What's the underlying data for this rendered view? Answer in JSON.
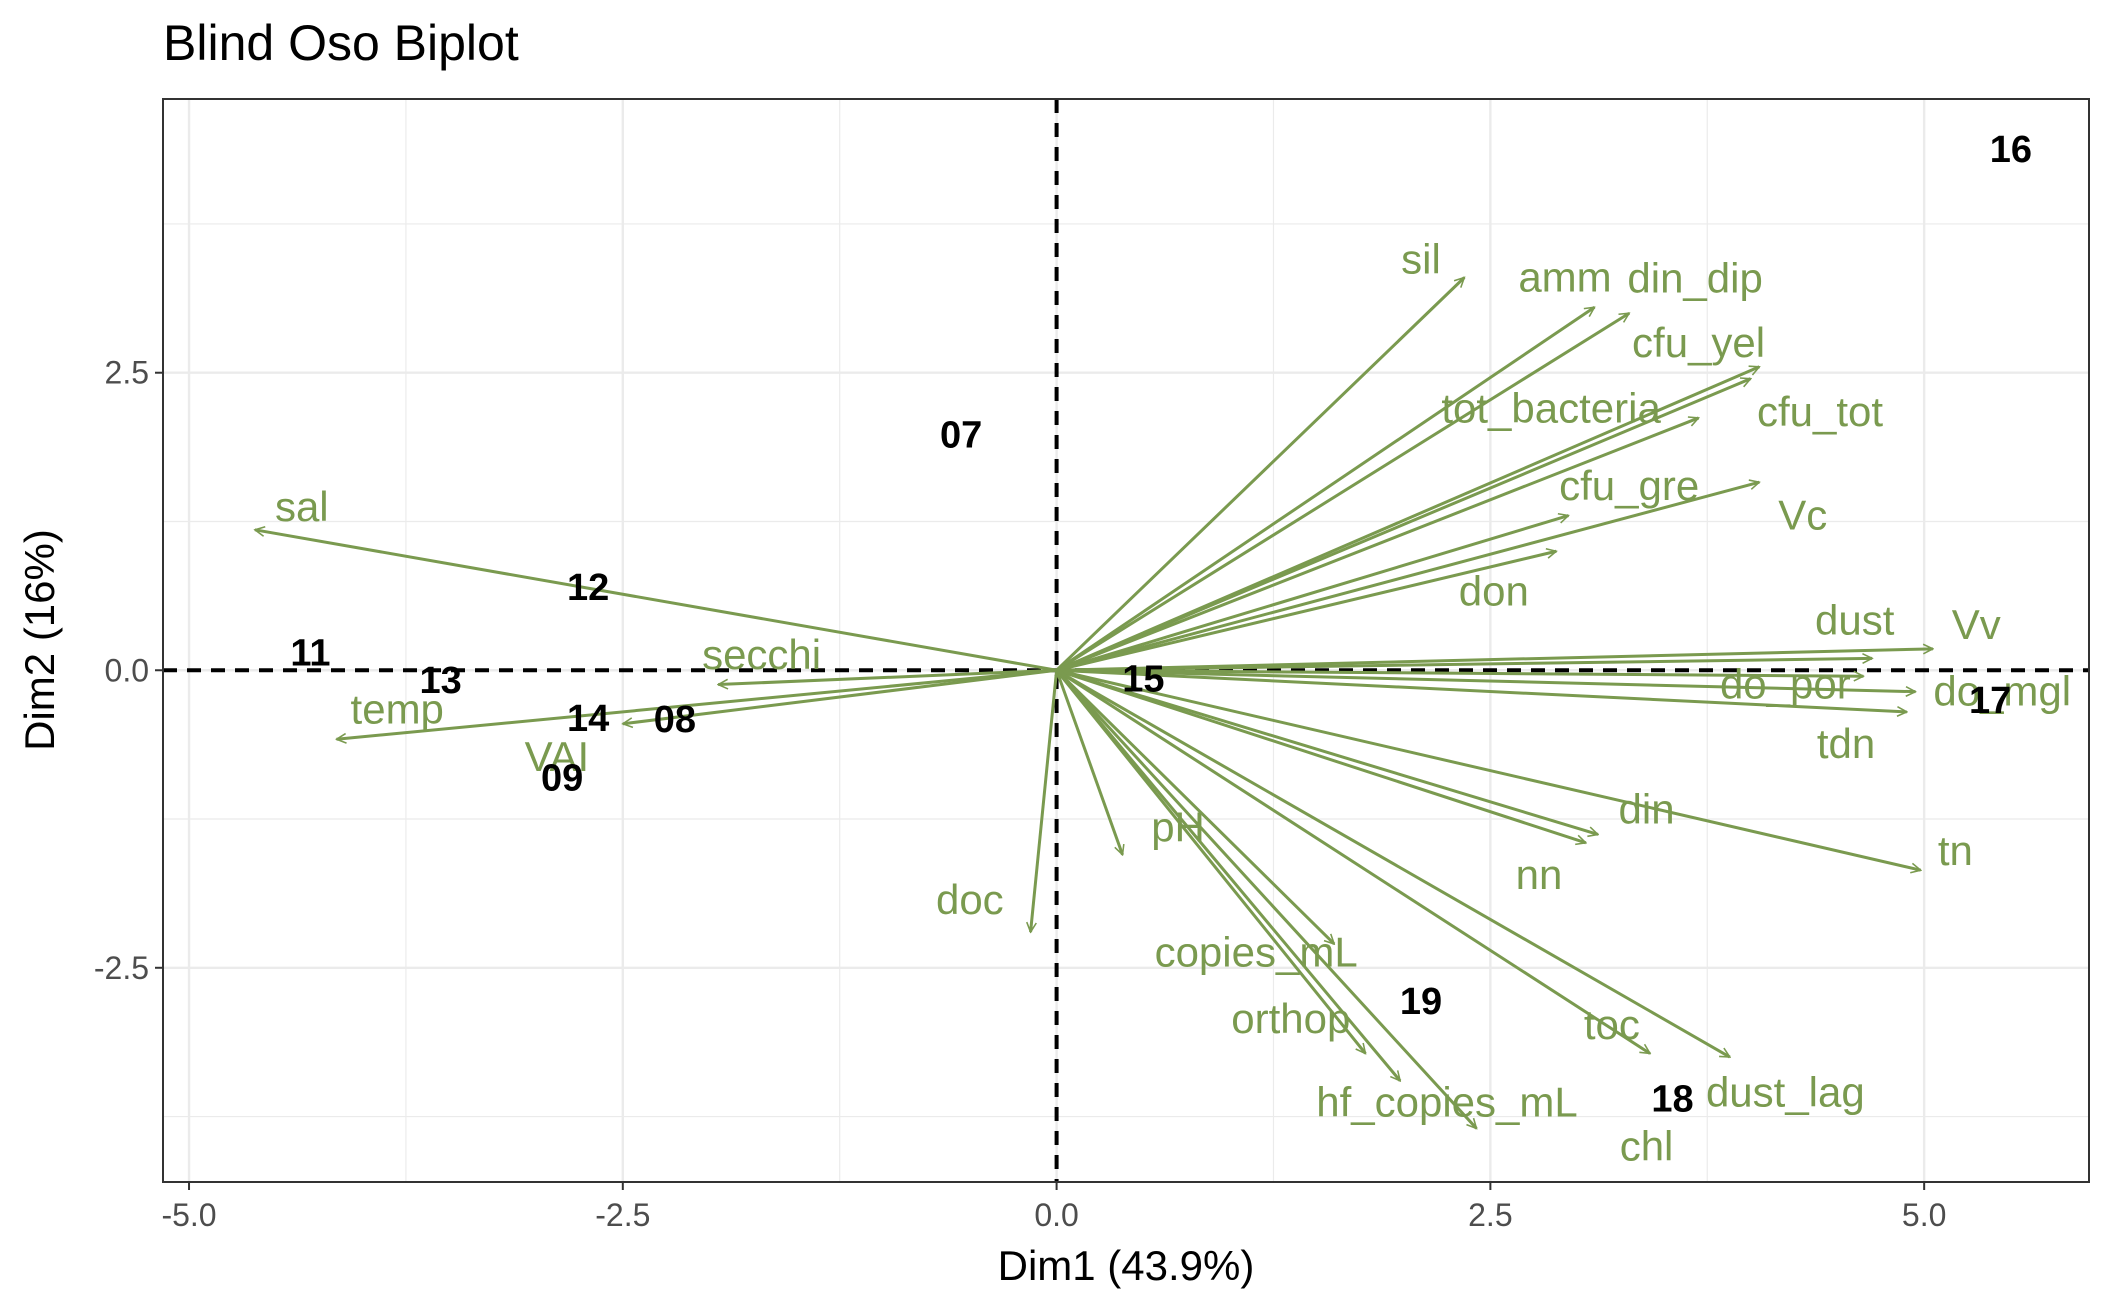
{
  "chart_data": {
    "type": "scatter",
    "title": "Blind Oso Biplot",
    "xlabel": "Dim1 (43.9%)",
    "ylabel": "Dim2 (16%)",
    "xlim": [
      -5.15,
      5.95
    ],
    "ylim": [
      -4.3,
      4.8
    ],
    "x_ticks": [
      -5.0,
      -2.5,
      0.0,
      2.5,
      5.0
    ],
    "x_tick_labels": [
      "-5.0",
      "-2.5",
      "0.0",
      "2.5",
      "5.0"
    ],
    "y_ticks": [
      -2.5,
      0.0,
      2.5
    ],
    "y_tick_labels": [
      "-2.5",
      "0.0",
      "2.5"
    ],
    "grid": true,
    "reference_lines": {
      "x": 0,
      "y": 0,
      "style": "dashed"
    },
    "colors": {
      "variables": "#7a9a4f",
      "observations": "#000000",
      "grid": "#ebebeb",
      "reference": "#000000"
    },
    "observations": [
      {
        "label": "07",
        "x": -0.55,
        "y": 1.98
      },
      {
        "label": "08",
        "x": -2.2,
        "y": -0.41
      },
      {
        "label": "09",
        "x": -2.85,
        "y": -0.9
      },
      {
        "label": "11",
        "x": -4.3,
        "y": 0.15
      },
      {
        "label": "12",
        "x": -2.7,
        "y": 0.7
      },
      {
        "label": "13",
        "x": -3.55,
        "y": -0.08
      },
      {
        "label": "14",
        "x": -2.7,
        "y": -0.4
      },
      {
        "label": "15",
        "x": 0.5,
        "y": -0.07
      },
      {
        "label": "16",
        "x": 5.5,
        "y": 4.38
      },
      {
        "label": "17",
        "x": 5.38,
        "y": -0.25
      },
      {
        "label": "18",
        "x": 3.55,
        "y": -3.6
      },
      {
        "label": "19",
        "x": 2.1,
        "y": -2.78
      }
    ],
    "variables": [
      {
        "name": "sil",
        "x": 2.35,
        "y": 3.3,
        "label_x": 2.1,
        "label_y": 3.45
      },
      {
        "name": "amm",
        "x": 3.1,
        "y": 3.05,
        "label_x": 2.93,
        "label_y": 3.3
      },
      {
        "name": "din_dip",
        "x": 3.3,
        "y": 3.0,
        "label_x": 3.68,
        "label_y": 3.29
      },
      {
        "name": "cfu_yel",
        "x": 4.05,
        "y": 2.55,
        "label_x": 3.7,
        "label_y": 2.75
      },
      {
        "name": "cfu_tot",
        "x": 4.0,
        "y": 2.45,
        "label_x": 4.4,
        "label_y": 2.17
      },
      {
        "name": "tot_bacteria",
        "x": 3.7,
        "y": 2.12,
        "label_x": 2.85,
        "label_y": 2.2
      },
      {
        "name": "cfu_gre",
        "x": 2.95,
        "y": 1.3,
        "label_x": 3.3,
        "label_y": 1.55
      },
      {
        "name": "Vc",
        "x": 4.05,
        "y": 1.58,
        "label_x": 4.3,
        "label_y": 1.3
      },
      {
        "name": "don",
        "x": 2.88,
        "y": 1.0,
        "label_x": 2.52,
        "label_y": 0.66
      },
      {
        "name": "dust",
        "x": 4.7,
        "y": 0.1,
        "label_x": 4.6,
        "label_y": 0.42
      },
      {
        "name": "Vv",
        "x": 5.05,
        "y": 0.18,
        "label_x": 5.3,
        "label_y": 0.38
      },
      {
        "name": "do_por",
        "x": 4.65,
        "y": -0.05,
        "label_x": 4.2,
        "label_y": -0.12
      },
      {
        "name": "do_mgl",
        "x": 4.95,
        "y": -0.18,
        "label_x": 5.45,
        "label_y": -0.18
      },
      {
        "name": "tdn",
        "x": 4.9,
        "y": -0.35,
        "label_x": 4.55,
        "label_y": -0.62
      },
      {
        "name": "din",
        "x": 3.12,
        "y": -1.38,
        "label_x": 3.4,
        "label_y": -1.17
      },
      {
        "name": "nn",
        "x": 3.05,
        "y": -1.45,
        "label_x": 2.78,
        "label_y": -1.72
      },
      {
        "name": "tn",
        "x": 4.98,
        "y": -1.68,
        "label_x": 5.18,
        "label_y": -1.52
      },
      {
        "name": "pH",
        "x": 0.38,
        "y": -1.55,
        "label_x": 0.7,
        "label_y": -1.32
      },
      {
        "name": "doc",
        "x": -0.15,
        "y": -2.2,
        "label_x": -0.5,
        "label_y": -1.93
      },
      {
        "name": "copies_mL",
        "x": 1.6,
        "y": -2.3,
        "label_x": 1.15,
        "label_y": -2.37
      },
      {
        "name": "orthop",
        "x": 1.78,
        "y": -3.22,
        "label_x": 1.35,
        "label_y": -2.93
      },
      {
        "name": "hf_copies_mL",
        "x": 1.98,
        "y": -3.45,
        "label_x": 2.25,
        "label_y": -3.63
      },
      {
        "name": "chl",
        "x": 2.42,
        "y": -3.85,
        "label_x": 3.4,
        "label_y": -4.0
      },
      {
        "name": "toc",
        "x": 3.42,
        "y": -3.22,
        "label_x": 3.2,
        "label_y": -2.98
      },
      {
        "name": "dust_lag",
        "x": 3.88,
        "y": -3.25,
        "label_x": 4.2,
        "label_y": -3.55
      },
      {
        "name": "sal",
        "x": -4.62,
        "y": 1.18,
        "label_x": -4.35,
        "label_y": 1.37
      },
      {
        "name": "secchi",
        "x": -1.95,
        "y": -0.12,
        "label_x": -1.7,
        "label_y": 0.13
      },
      {
        "name": "temp",
        "x": -4.15,
        "y": -0.58,
        "label_x": -3.8,
        "label_y": -0.33
      },
      {
        "name": "VAI",
        "x": -2.5,
        "y": -0.45,
        "label_x": -2.88,
        "label_y": -0.73
      }
    ]
  }
}
